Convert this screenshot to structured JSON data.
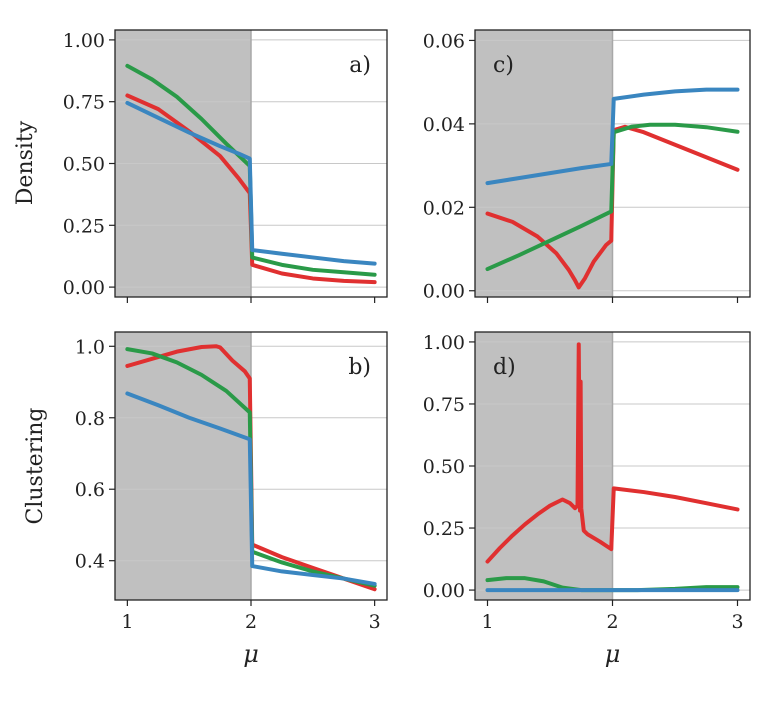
{
  "chart_data": [
    {
      "id": "a",
      "type": "line",
      "panel_label": "a)",
      "ylabel": "Density",
      "xlabel": "",
      "xlim": [
        0.9,
        3.1
      ],
      "ylim": [
        -0.04,
        1.04
      ],
      "yticks": [
        0.0,
        0.25,
        0.5,
        0.75,
        1.0
      ],
      "ytick_labels": [
        "0.00",
        "0.25",
        "0.50",
        "0.75",
        "1.00"
      ],
      "xticks": [
        1,
        2,
        3
      ],
      "xtick_labels": [
        "",
        "",
        ""
      ],
      "shaded_range": [
        0.9,
        2.0
      ],
      "divider_x": 2.0,
      "series": [
        {
          "name": "red",
          "color": "#e03030",
          "x": [
            1.0,
            1.25,
            1.5,
            1.75,
            1.9,
            1.99,
            2.01,
            2.25,
            2.5,
            2.75,
            3.0
          ],
          "y": [
            0.775,
            0.72,
            0.63,
            0.53,
            0.44,
            0.38,
            0.09,
            0.055,
            0.035,
            0.025,
            0.02
          ]
        },
        {
          "name": "green",
          "color": "#2a9a48",
          "x": [
            1.0,
            1.2,
            1.4,
            1.6,
            1.8,
            1.99,
            2.01,
            2.25,
            2.5,
            2.75,
            3.0
          ],
          "y": [
            0.895,
            0.84,
            0.77,
            0.68,
            0.58,
            0.49,
            0.12,
            0.09,
            0.07,
            0.06,
            0.05
          ]
        },
        {
          "name": "blue",
          "color": "#3a86c0",
          "x": [
            1.0,
            1.25,
            1.5,
            1.75,
            1.9,
            1.99,
            2.01,
            2.25,
            2.5,
            2.75,
            3.0
          ],
          "y": [
            0.745,
            0.685,
            0.625,
            0.57,
            0.54,
            0.52,
            0.15,
            0.135,
            0.12,
            0.105,
            0.095
          ]
        }
      ]
    },
    {
      "id": "c",
      "type": "line",
      "panel_label": "c)",
      "ylabel": "",
      "xlabel": "",
      "xlim": [
        0.9,
        3.1
      ],
      "ylim": [
        -0.0015,
        0.0625
      ],
      "yticks": [
        0.0,
        0.02,
        0.04,
        0.06
      ],
      "ytick_labels": [
        "0.00",
        "0.02",
        "0.04",
        "0.06"
      ],
      "xticks": [
        1,
        2,
        3
      ],
      "xtick_labels": [
        "",
        "",
        ""
      ],
      "shaded_range": [
        0.9,
        2.0
      ],
      "divider_x": 2.0,
      "series": [
        {
          "name": "red",
          "color": "#e03030",
          "x": [
            1.0,
            1.2,
            1.4,
            1.55,
            1.65,
            1.7,
            1.73,
            1.78,
            1.85,
            1.95,
            1.99,
            2.01,
            2.1,
            2.25,
            2.5,
            2.75,
            3.0
          ],
          "y": [
            0.0185,
            0.0165,
            0.013,
            0.009,
            0.005,
            0.0025,
            0.0008,
            0.003,
            0.007,
            0.011,
            0.012,
            0.0385,
            0.0393,
            0.038,
            0.035,
            0.032,
            0.029
          ]
        },
        {
          "name": "green",
          "color": "#2a9a48",
          "x": [
            1.0,
            1.25,
            1.5,
            1.75,
            1.99,
            2.01,
            2.15,
            2.3,
            2.5,
            2.75,
            3.0
          ],
          "y": [
            0.0052,
            0.0085,
            0.012,
            0.0155,
            0.019,
            0.038,
            0.0393,
            0.0398,
            0.0398,
            0.0392,
            0.0381
          ]
        },
        {
          "name": "blue",
          "color": "#3a86c0",
          "x": [
            1.0,
            1.25,
            1.5,
            1.75,
            1.99,
            2.01,
            2.25,
            2.5,
            2.75,
            3.0
          ],
          "y": [
            0.0258,
            0.027,
            0.0282,
            0.0294,
            0.0304,
            0.046,
            0.047,
            0.0478,
            0.0482,
            0.0482
          ]
        }
      ]
    },
    {
      "id": "b",
      "type": "line",
      "panel_label": "b)",
      "ylabel": "Clustering",
      "xlabel": "μ",
      "xlim": [
        0.9,
        3.1
      ],
      "ylim": [
        0.29,
        1.04
      ],
      "yticks": [
        0.4,
        0.6,
        0.8,
        1.0
      ],
      "ytick_labels": [
        "0.4",
        "0.6",
        "0.8",
        "1.0"
      ],
      "xticks": [
        1,
        2,
        3
      ],
      "xtick_labels": [
        "1",
        "2",
        "3"
      ],
      "shaded_range": [
        0.9,
        2.0
      ],
      "divider_x": 2.0,
      "series": [
        {
          "name": "red",
          "color": "#e03030",
          "x": [
            1.0,
            1.2,
            1.4,
            1.6,
            1.72,
            1.75,
            1.85,
            1.95,
            1.99,
            2.01,
            2.25,
            2.5,
            2.75,
            3.0
          ],
          "y": [
            0.945,
            0.965,
            0.985,
            0.998,
            1.0,
            0.997,
            0.96,
            0.93,
            0.91,
            0.445,
            0.41,
            0.38,
            0.35,
            0.32
          ]
        },
        {
          "name": "green",
          "color": "#2a9a48",
          "x": [
            1.0,
            1.2,
            1.4,
            1.6,
            1.8,
            1.99,
            2.01,
            2.25,
            2.5,
            2.75,
            3.0
          ],
          "y": [
            0.992,
            0.98,
            0.955,
            0.92,
            0.875,
            0.815,
            0.425,
            0.395,
            0.37,
            0.35,
            0.33
          ]
        },
        {
          "name": "blue",
          "color": "#3a86c0",
          "x": [
            1.0,
            1.25,
            1.5,
            1.75,
            1.99,
            2.01,
            2.25,
            2.5,
            2.75,
            3.0
          ],
          "y": [
            0.868,
            0.835,
            0.8,
            0.77,
            0.74,
            0.385,
            0.37,
            0.36,
            0.35,
            0.335
          ]
        }
      ]
    },
    {
      "id": "d",
      "type": "line",
      "panel_label": "d)",
      "ylabel": "",
      "xlabel": "μ",
      "xlim": [
        0.9,
        3.1
      ],
      "ylim": [
        -0.04,
        1.04
      ],
      "yticks": [
        0.0,
        0.25,
        0.5,
        0.75,
        1.0
      ],
      "ytick_labels": [
        "0.00",
        "0.25",
        "0.50",
        "0.75",
        "1.00"
      ],
      "xticks": [
        1,
        2,
        3
      ],
      "xtick_labels": [
        "1",
        "2",
        "3"
      ],
      "shaded_range": [
        0.9,
        2.0
      ],
      "divider_x": 2.0,
      "series": [
        {
          "name": "red",
          "color": "#e03030",
          "x": [
            1.0,
            1.1,
            1.2,
            1.3,
            1.4,
            1.5,
            1.6,
            1.66,
            1.7,
            1.72,
            1.73,
            1.74,
            1.745,
            1.75,
            1.77,
            1.8,
            1.9,
            1.99,
            2.01,
            2.25,
            2.5,
            2.75,
            3.0
          ],
          "y": [
            0.115,
            0.17,
            0.22,
            0.265,
            0.305,
            0.34,
            0.365,
            0.35,
            0.33,
            0.34,
            0.99,
            0.32,
            0.84,
            0.33,
            0.24,
            0.225,
            0.195,
            0.165,
            0.41,
            0.395,
            0.375,
            0.35,
            0.325
          ]
        },
        {
          "name": "green",
          "color": "#2a9a48",
          "x": [
            1.0,
            1.15,
            1.3,
            1.45,
            1.6,
            1.75,
            1.99,
            2.01,
            2.2,
            2.5,
            2.75,
            3.0
          ],
          "y": [
            0.04,
            0.048,
            0.048,
            0.035,
            0.01,
            0.0,
            0.0,
            0.0,
            0.0,
            0.005,
            0.012,
            0.012
          ]
        },
        {
          "name": "blue",
          "color": "#3a86c0",
          "x": [
            1.0,
            1.5,
            1.99,
            2.01,
            2.5,
            3.0
          ],
          "y": [
            0.0,
            0.0,
            0.0,
            0.0,
            0.0,
            0.0
          ]
        }
      ]
    }
  ]
}
